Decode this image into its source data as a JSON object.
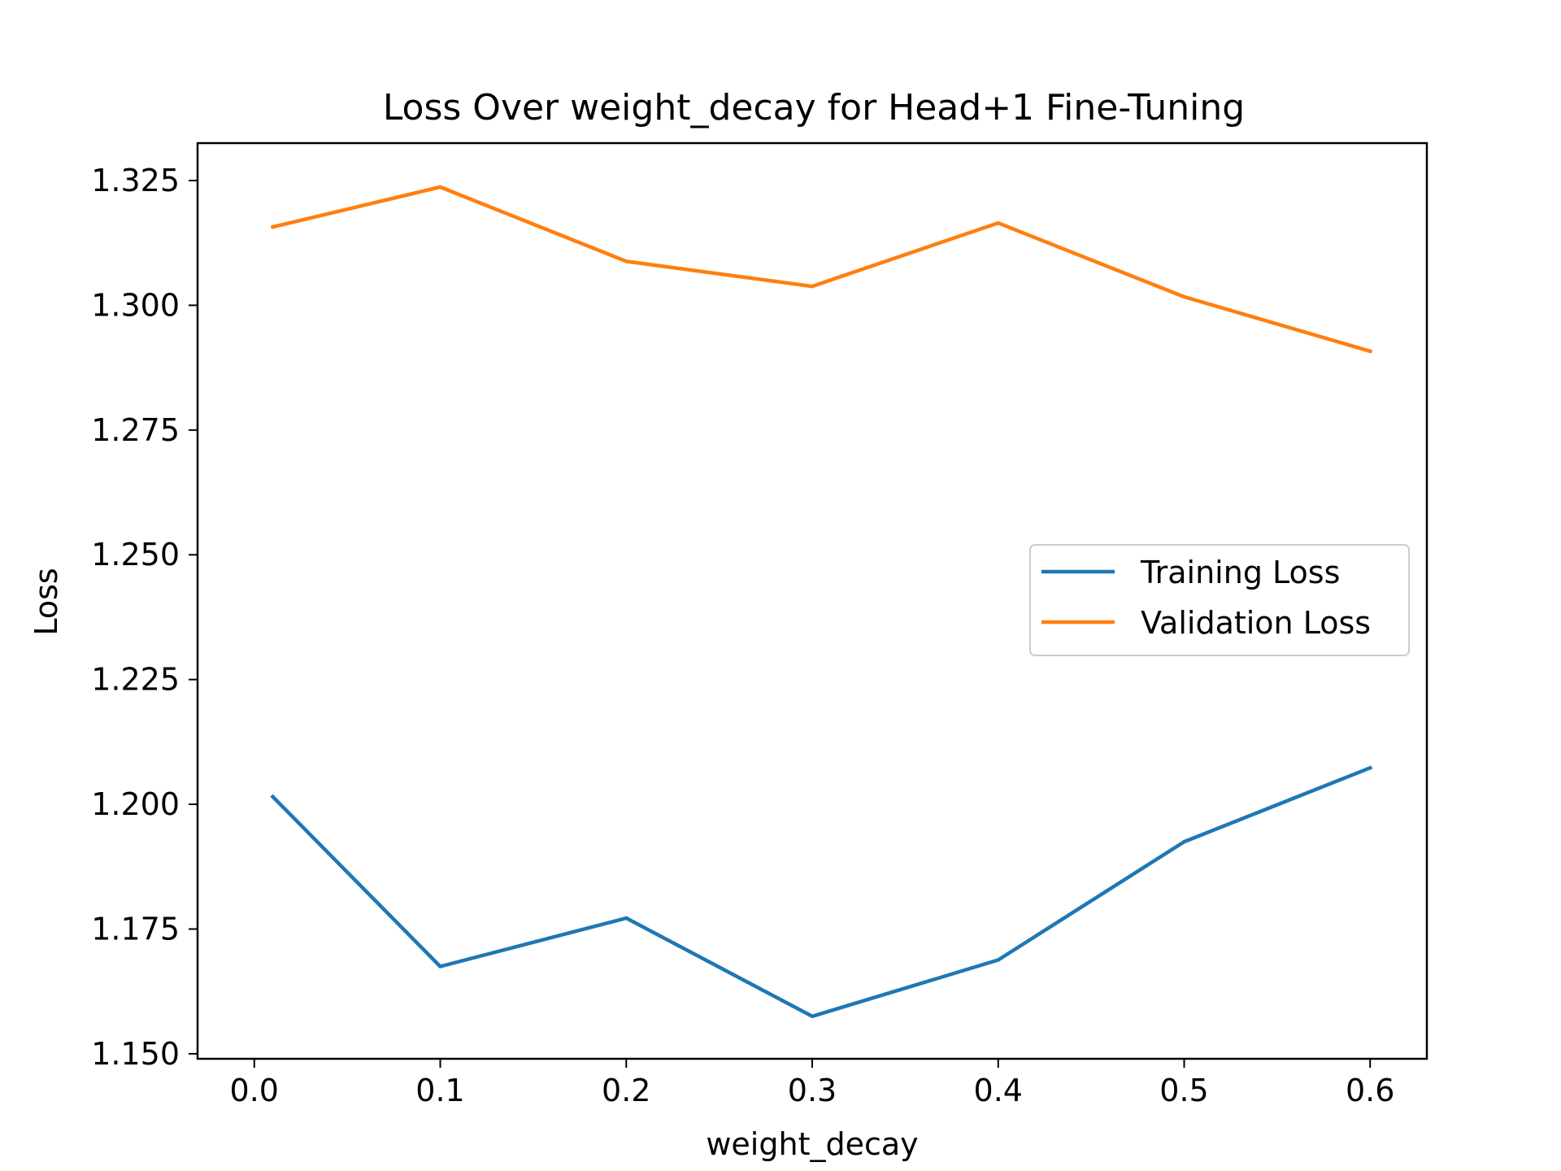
{
  "chart_data": {
    "type": "line",
    "title": "Loss Over weight_decay for Head+1 Fine-Tuning",
    "xlabel": "weight_decay",
    "ylabel": "Loss",
    "xlim": [
      -0.0305,
      0.6305
    ],
    "ylim": [
      1.149,
      1.3325
    ],
    "x_ticks": [
      0.0,
      0.1,
      0.2,
      0.3,
      0.4,
      0.5,
      0.6
    ],
    "x_tick_labels": [
      "0.0",
      "0.1",
      "0.2",
      "0.3",
      "0.4",
      "0.5",
      "0.6"
    ],
    "y_ticks": [
      1.15,
      1.175,
      1.2,
      1.225,
      1.25,
      1.275,
      1.3,
      1.325
    ],
    "y_tick_labels": [
      "1.150",
      "1.175",
      "1.200",
      "1.225",
      "1.250",
      "1.275",
      "1.300",
      "1.325"
    ],
    "x": [
      0.01,
      0.1,
      0.2,
      0.3,
      0.4,
      0.5,
      0.6
    ],
    "series": [
      {
        "name": "Training Loss",
        "color": "#1f77b4",
        "values": [
          1.2015,
          1.1675,
          1.1772,
          1.1575,
          1.1688,
          1.1925,
          1.2073
        ]
      },
      {
        "name": "Validation Loss",
        "color": "#ff7f0e",
        "values": [
          1.3157,
          1.3237,
          1.3088,
          1.3038,
          1.3165,
          1.3017,
          1.2908
        ]
      }
    ],
    "grid": false,
    "legend_position": "center-right"
  }
}
